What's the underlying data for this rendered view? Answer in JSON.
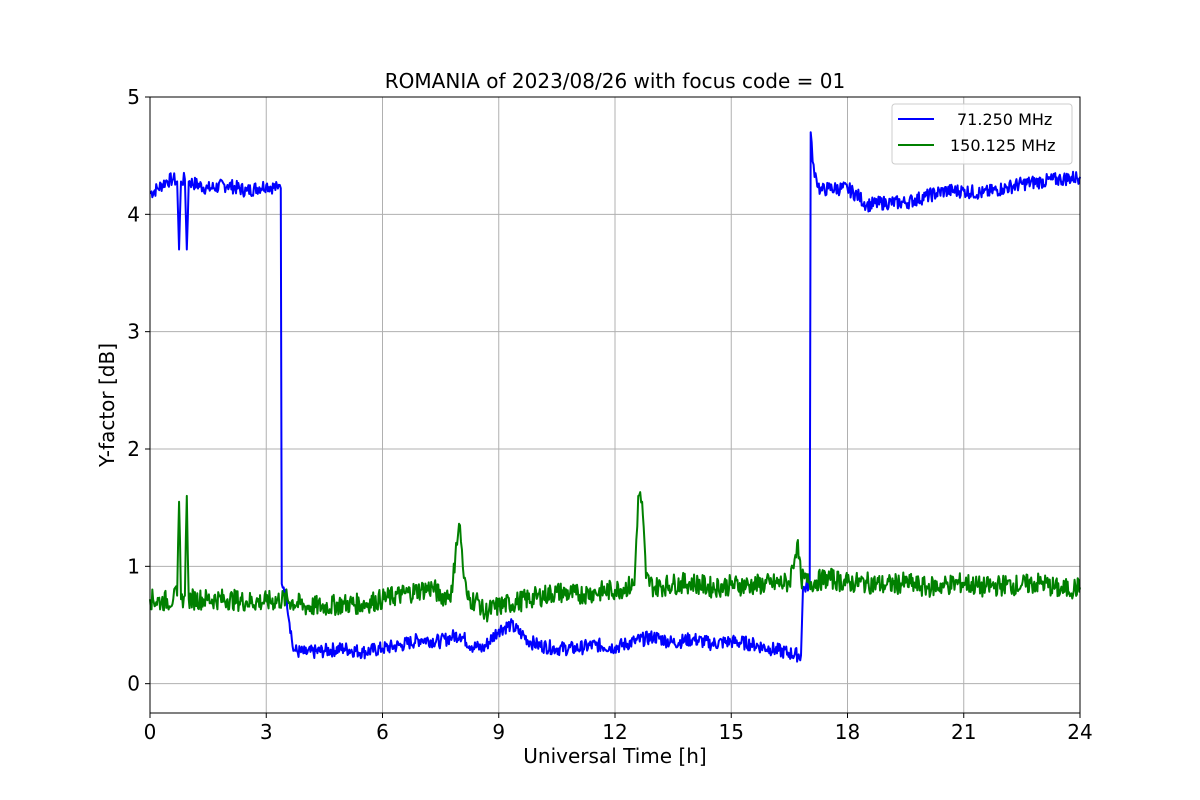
{
  "chart_data": {
    "type": "line",
    "title": "ROMANIA of 2023/08/26 with focus code = 01",
    "xlabel": "Universal Time [h]",
    "ylabel": "Y-factor [dB]",
    "xlim": [
      0,
      24
    ],
    "ylim": [
      -0.25,
      5.0
    ],
    "xticks": [
      0,
      3,
      6,
      9,
      12,
      15,
      18,
      21,
      24
    ],
    "yticks": [
      0,
      1,
      2,
      3,
      4,
      5
    ],
    "xtick_labels": [
      "0",
      "3",
      "6",
      "9",
      "12",
      "15",
      "18",
      "21",
      "24"
    ],
    "ytick_labels": [
      "0",
      "1",
      "2",
      "3",
      "4",
      "5"
    ],
    "grid": true,
    "legend_position": "top-right",
    "series": [
      {
        "name": "71.250 MHz",
        "color": "#0000ff",
        "x": [
          0,
          0.2,
          0.4,
          0.6,
          0.7,
          0.75,
          0.8,
          0.9,
          0.95,
          1.0,
          1.5,
          2.0,
          2.5,
          3.0,
          3.3,
          3.35,
          3.4,
          3.45,
          3.5,
          3.7,
          3.75,
          4.0,
          4.5,
          5.0,
          5.5,
          6.0,
          6.5,
          7.0,
          7.5,
          7.8,
          8.0,
          8.3,
          8.6,
          9.0,
          9.3,
          9.6,
          9.8,
          10.0,
          10.5,
          11.0,
          11.5,
          12.0,
          12.5,
          13.0,
          13.5,
          14.0,
          14.5,
          15.0,
          15.5,
          16.0,
          16.5,
          16.8,
          16.85,
          17.0,
          17.05,
          17.1,
          17.2,
          17.3,
          17.5,
          18.0,
          18.3,
          18.5,
          19.0,
          19.5,
          20.0,
          20.5,
          21.0,
          21.5,
          22.0,
          22.5,
          23.0,
          23.5,
          24.0
        ],
        "values": [
          4.18,
          4.22,
          4.28,
          4.3,
          4.28,
          3.7,
          4.28,
          4.3,
          3.7,
          4.28,
          4.22,
          4.25,
          4.2,
          4.25,
          4.22,
          4.25,
          0.85,
          0.82,
          0.8,
          0.28,
          0.28,
          0.26,
          0.28,
          0.3,
          0.27,
          0.3,
          0.33,
          0.38,
          0.36,
          0.4,
          0.42,
          0.32,
          0.3,
          0.46,
          0.5,
          0.42,
          0.36,
          0.33,
          0.3,
          0.3,
          0.33,
          0.31,
          0.36,
          0.4,
          0.35,
          0.38,
          0.34,
          0.36,
          0.34,
          0.3,
          0.26,
          0.24,
          0.8,
          0.85,
          4.7,
          4.45,
          4.3,
          4.2,
          4.22,
          4.22,
          4.15,
          4.08,
          4.1,
          4.1,
          4.15,
          4.2,
          4.2,
          4.18,
          4.22,
          4.26,
          4.28,
          4.3,
          4.32
        ]
      },
      {
        "name": "150.125 MHz",
        "color": "#008000",
        "x": [
          0,
          0.3,
          0.6,
          0.7,
          0.75,
          0.8,
          0.9,
          0.95,
          1.0,
          1.5,
          2.0,
          2.5,
          3.0,
          3.5,
          4.0,
          4.5,
          5.0,
          5.5,
          6.0,
          6.5,
          7.0,
          7.3,
          7.5,
          7.8,
          7.9,
          8.0,
          8.1,
          8.2,
          8.5,
          8.6,
          9.0,
          9.5,
          10.0,
          10.5,
          11.0,
          11.5,
          12.0,
          12.5,
          12.6,
          12.7,
          12.8,
          13.0,
          13.5,
          14.0,
          14.5,
          15.0,
          15.5,
          16.0,
          16.5,
          16.7,
          16.8,
          17.0,
          17.5,
          18.0,
          18.5,
          19.0,
          19.5,
          20.0,
          20.5,
          21.0,
          21.5,
          22.0,
          22.5,
          23.0,
          23.5,
          24.0
        ],
        "values": [
          0.72,
          0.7,
          0.72,
          0.75,
          1.55,
          0.72,
          0.75,
          1.6,
          0.72,
          0.72,
          0.72,
          0.7,
          0.7,
          0.72,
          0.66,
          0.66,
          0.68,
          0.68,
          0.72,
          0.76,
          0.8,
          0.82,
          0.74,
          0.78,
          1.2,
          1.35,
          0.9,
          0.72,
          0.7,
          0.6,
          0.66,
          0.7,
          0.74,
          0.78,
          0.76,
          0.78,
          0.8,
          0.84,
          1.6,
          1.55,
          0.9,
          0.82,
          0.85,
          0.86,
          0.82,
          0.84,
          0.84,
          0.85,
          0.86,
          1.2,
          0.9,
          0.86,
          0.9,
          0.86,
          0.86,
          0.84,
          0.86,
          0.82,
          0.84,
          0.86,
          0.82,
          0.84,
          0.84,
          0.86,
          0.8,
          0.82
        ]
      }
    ]
  }
}
